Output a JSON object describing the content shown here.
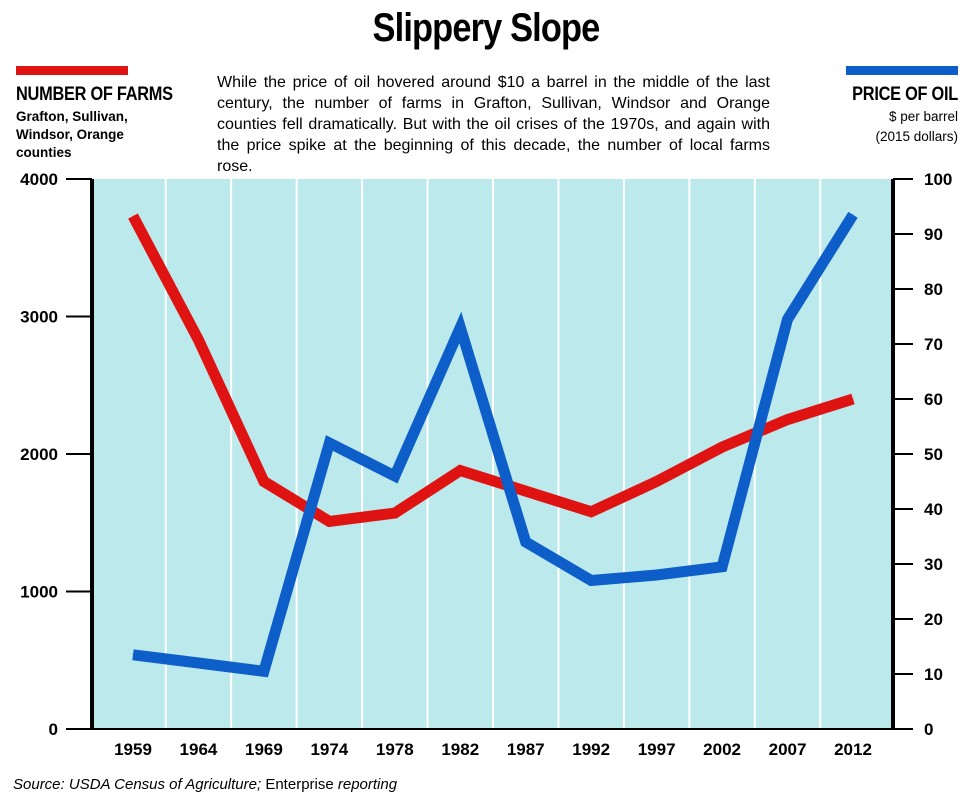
{
  "header": {
    "title": "Slippery Slope",
    "blurb": "While the price of oil hovered around $10 a barrel in the middle of the last century, the number of farms in Grafton, Sullivan, Windsor and Orange counties fell dramatically. But with the oil crises of the 1970s, and again with the price spike at the beginning of this decade, the number of local farms rose."
  },
  "legend": {
    "farms": {
      "label": "NUMBER OF FARMS",
      "sublabel": "Grafton, Sullivan, Windsor, Orange counties",
      "color": "#e01313"
    },
    "oil": {
      "label": "PRICE OF OIL",
      "sublabel_line1": "$ per barrel",
      "sublabel_line2": "(2015 dollars)",
      "color": "#0d5ec9"
    }
  },
  "footer": {
    "source_prefix": "Source: USDA Census of Agriculture;",
    "source_middle": " Enterprise ",
    "source_suffix": "reporting"
  },
  "chart_data": {
    "type": "line",
    "categories": [
      "1959",
      "1964",
      "1969",
      "1974",
      "1978",
      "1982",
      "1987",
      "1992",
      "1997",
      "2002",
      "2007",
      "2012"
    ],
    "series": [
      {
        "name": "NUMBER OF FARMS",
        "axis": "left",
        "color": "#e01313",
        "values": [
          3730,
          2830,
          1800,
          1510,
          1570,
          1880,
          1730,
          1580,
          1800,
          2050,
          2250,
          2400
        ]
      },
      {
        "name": "PRICE OF OIL",
        "axis": "right",
        "color": "#0d5ec9",
        "values": [
          13.5,
          12,
          10.5,
          52,
          46,
          73,
          34,
          27,
          28,
          29.5,
          74.5,
          93.5
        ]
      }
    ],
    "y_left": {
      "lim": [
        0,
        4000
      ],
      "ticks": [
        "0",
        "1000",
        "2000",
        "3000",
        "4000"
      ]
    },
    "y_right": {
      "lim": [
        0,
        100
      ],
      "ticks": [
        "0",
        "10",
        "20",
        "30",
        "40",
        "50",
        "60",
        "70",
        "80",
        "90",
        "100"
      ]
    },
    "background": "#bce9ec",
    "grid": "vertical"
  }
}
